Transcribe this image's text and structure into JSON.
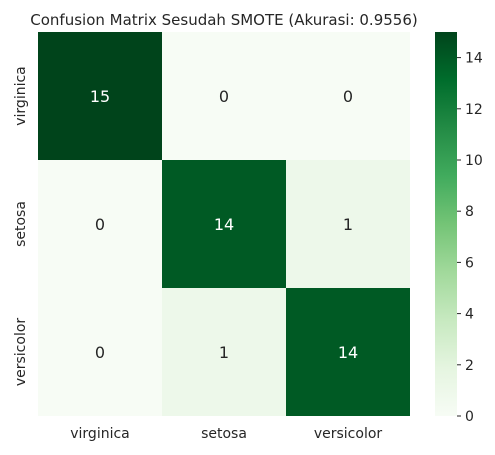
{
  "chart_data": {
    "type": "heatmap",
    "title": "Confusion Matrix Sesudah SMOTE (Akurasi: 0.9556)",
    "xlabel": "",
    "ylabel": "",
    "x_categories": [
      "virginica",
      "setosa",
      "versicolor"
    ],
    "y_categories": [
      "virginica",
      "setosa",
      "versicolor"
    ],
    "values": [
      [
        15,
        0,
        0
      ],
      [
        0,
        14,
        1
      ],
      [
        0,
        1,
        14
      ]
    ],
    "colorbar": {
      "min": 0,
      "max": 15,
      "ticks": [
        0,
        2,
        4,
        6,
        8,
        10,
        12,
        14
      ]
    },
    "colormap": "Greens",
    "colors": {
      "low": "#f7fcf5",
      "mid": "#74c476",
      "high": "#00441b",
      "dark_text": "#262626",
      "light_text": "#ffffff"
    }
  }
}
